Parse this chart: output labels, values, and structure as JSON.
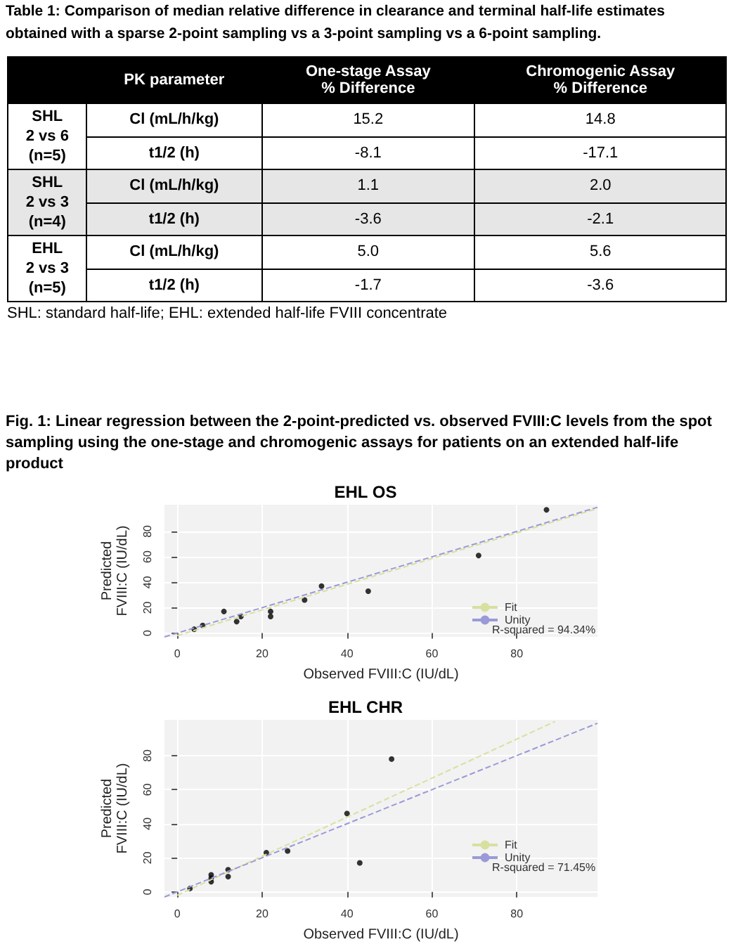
{
  "chart_data": [
    {
      "type": "other",
      "title": "Table 1:  Comparison of median relative difference in clearance and terminal half-life estimates obtained with a sparse 2-point sampling vs a 3-point sampling vs a 6-point sampling.",
      "categories": [
        null,
        "PK parameter",
        "One-stage Assay\n% Difference",
        "Chromogenic Assay\n% Difference"
      ],
      "cell_labels": [
        [
          "SHL\n2 vs 6\n(n=5)",
          "Cl (mL/h/kg)",
          "15.2",
          "14.8"
        ],
        [
          null,
          "t1/2 (h)",
          "-8.1",
          "-17.1"
        ],
        [
          "SHL\n2 vs 3\n(n=4)",
          "Cl (mL/h/kg)",
          "1.1",
          "2.0"
        ],
        [
          null,
          "t1/2 (h)",
          "-3.6",
          "-2.1"
        ],
        [
          "EHL\n2 vs 3\n(n=5)",
          "Cl (mL/h/kg)",
          "5.0",
          "5.6"
        ],
        [
          null,
          "t1/2 (h)",
          "-1.7",
          "-3.6"
        ]
      ],
      "annotations": [
        "SHL: standard half-life; EHL: extended half-life FVIII concentrate"
      ]
    },
    {
      "type": "scatter",
      "title": "EHL OS",
      "subtitle": "Fig. 1: Linear regression between the 2-point-predicted vs. observed FVIII:C levels from the spot sampling using the one-stage and chromogenic assays for patients on an extended half-life product",
      "xlabel": "Observed FVIII:C (IU/dL)",
      "ylabel": "Predicted\nFVIII:C (IU/dL)",
      "xlim": [
        -3,
        99
      ],
      "ylim": [
        -3,
        101
      ],
      "xticks": [
        0,
        20,
        40,
        60,
        80
      ],
      "yticks": [
        0,
        20,
        40,
        60,
        80
      ],
      "grid": true,
      "legend": "bottom right",
      "annotations": [
        "R-squared = 94.34%"
      ],
      "series": [
        {
          "type": "scatter",
          "color": "#000000",
          "marker": "circle",
          "x": [
            4,
            6,
            11,
            14,
            15,
            22,
            22,
            30,
            34,
            45,
            71,
            87
          ],
          "values": [
            3,
            6,
            17,
            9,
            13,
            17,
            13,
            26,
            37,
            33,
            61,
            97
          ]
        },
        {
          "type": "line",
          "name": "Fit",
          "color": "#d8e0a0",
          "marker": "none",
          "line_style": "dashed",
          "x": [
            0,
            99
          ],
          "values": [
            -2,
            98
          ]
        },
        {
          "type": "line",
          "name": "Unity",
          "color": "#9a9ad8",
          "marker": "none",
          "line_style": "dashed",
          "x": [
            -3,
            99
          ],
          "values": [
            -3,
            99
          ]
        }
      ]
    },
    {
      "type": "scatter",
      "title": "EHL CHR",
      "xlabel": "Observed FVIII:C (IU/dL)",
      "ylabel": "Predicted\nFVIII:C (IU/dL)",
      "xlim": [
        -3,
        99
      ],
      "ylim": [
        -3,
        101
      ],
      "xticks": [
        0,
        20,
        40,
        60,
        80
      ],
      "yticks": [
        0,
        20,
        40,
        60,
        80
      ],
      "grid": true,
      "legend": "bottom right",
      "annotations": [
        "R-squared = 71.45%"
      ],
      "series": [
        {
          "type": "scatter",
          "color": "#000000",
          "marker": "circle",
          "x": [
            3,
            8,
            8,
            8,
            12,
            12,
            21,
            26,
            40,
            50.5,
            43
          ],
          "values": [
            2,
            10,
            8,
            6,
            13,
            9,
            23,
            24,
            46,
            78,
            17
          ]
        },
        {
          "type": "line",
          "name": "Fit",
          "color": "#d8e0a0",
          "marker": "none",
          "line_style": "dashed",
          "x": [
            0,
            89
          ],
          "values": [
            -2,
            100
          ]
        },
        {
          "type": "line",
          "name": "Unity",
          "color": "#9a9ad8",
          "marker": "none",
          "line_style": "dashed",
          "x": [
            -3,
            99
          ],
          "values": [
            -3,
            99
          ]
        }
      ]
    }
  ]
}
